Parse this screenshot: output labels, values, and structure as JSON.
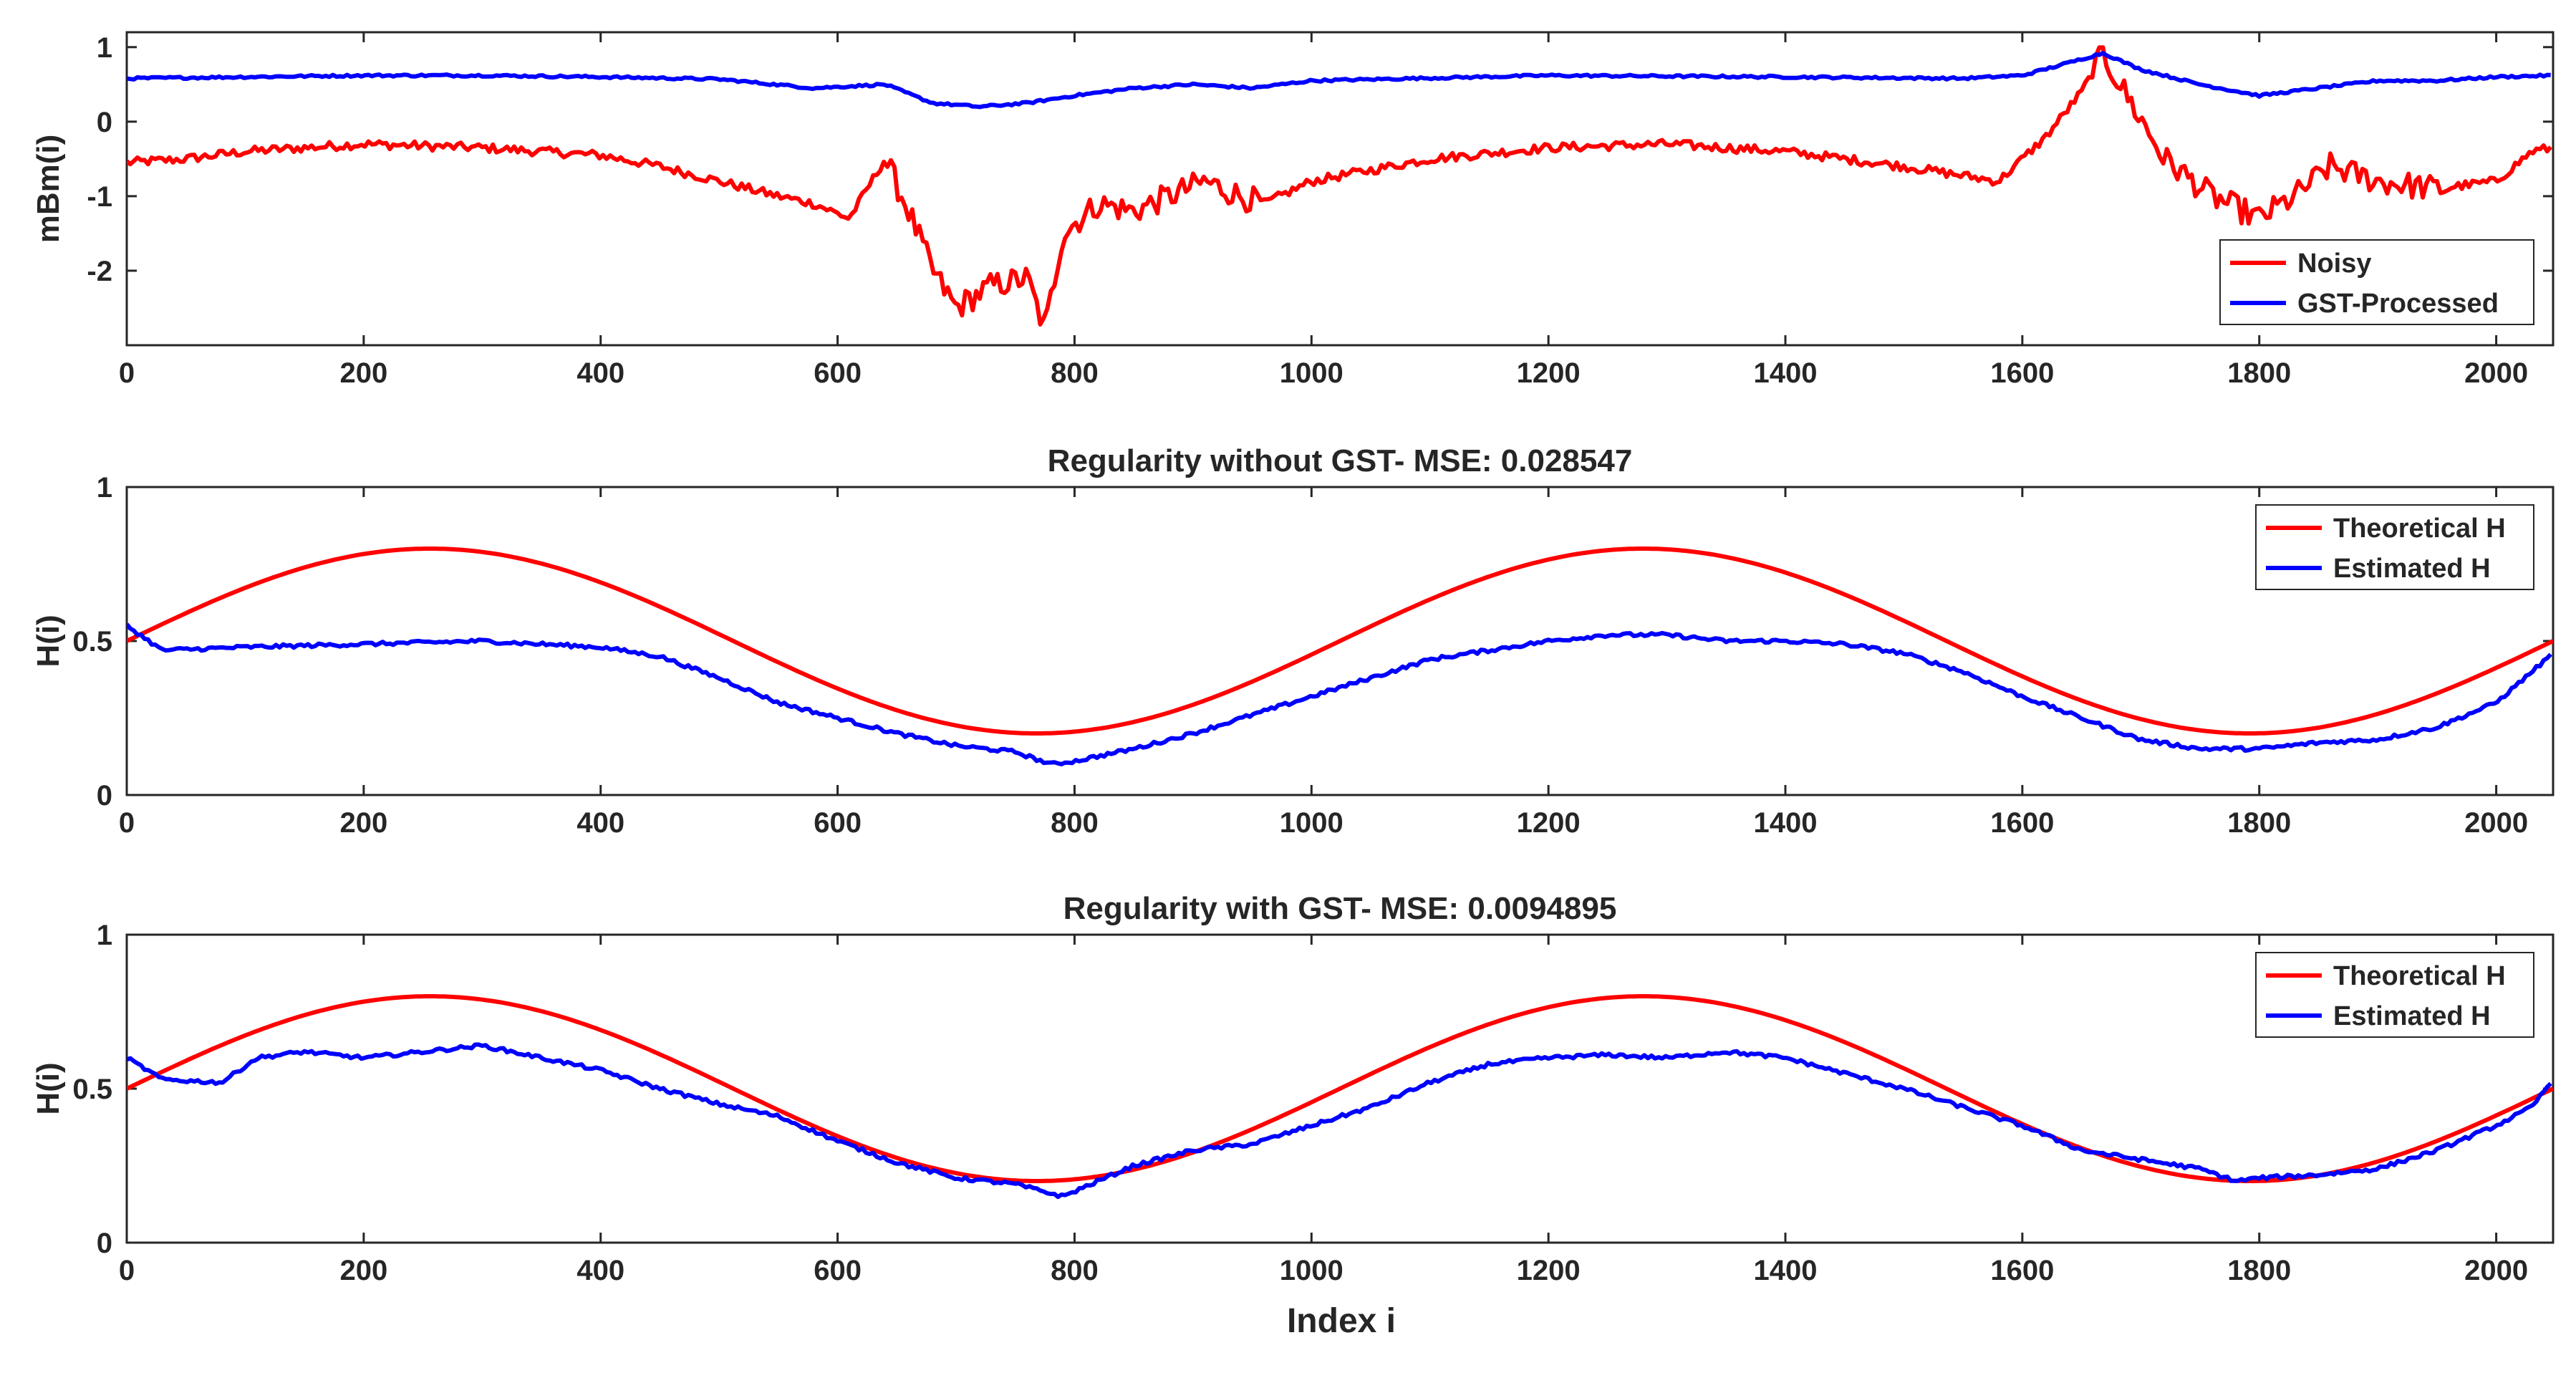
{
  "figure": {
    "xlabel": "Index i"
  },
  "chart_data": [
    {
      "type": "line",
      "title": "",
      "xlabel": "",
      "ylabel": "mBm(i)",
      "xlim": [
        0,
        2048
      ],
      "ylim": [
        -3,
        1.2
      ],
      "xticks": [
        "0",
        "200",
        "400",
        "600",
        "800",
        "1000",
        "1200",
        "1400",
        "1600",
        "1800",
        "2000"
      ],
      "yticks": [
        "-2",
        "-1",
        "0",
        "1"
      ],
      "ytick_values": [
        -2,
        -1,
        0,
        1
      ],
      "legend_position": "bottom-right",
      "series": [
        {
          "name": "Noisy",
          "color": "#ff0000",
          "x": [
            0,
            50,
            100,
            200,
            300,
            400,
            450,
            500,
            550,
            580,
            610,
            640,
            660,
            680,
            700,
            730,
            760,
            775,
            790,
            820,
            850,
            880,
            910,
            940,
            960,
            1000,
            1100,
            1200,
            1300,
            1400,
            1500,
            1580,
            1620,
            1650,
            1668,
            1690,
            1720,
            1760,
            1800,
            1830,
            1860,
            1900,
            1950,
            2000,
            2030,
            2048
          ],
          "values": [
            -0.55,
            -0.5,
            -0.4,
            -0.3,
            -0.35,
            -0.45,
            -0.6,
            -0.8,
            -1.0,
            -1.1,
            -1.3,
            -0.5,
            -1.2,
            -2.0,
            -2.5,
            -2.2,
            -2.1,
            -2.8,
            -1.5,
            -1.1,
            -1.2,
            -1.0,
            -0.8,
            -1.0,
            -1.1,
            -0.8,
            -0.5,
            -0.35,
            -0.3,
            -0.4,
            -0.6,
            -0.8,
            -0.2,
            0.4,
            0.9,
            0.3,
            -0.5,
            -1.0,
            -1.3,
            -1.0,
            -0.6,
            -0.8,
            -0.9,
            -0.8,
            -0.4,
            -0.35
          ]
        },
        {
          "name": "GST-Processed",
          "color": "#0000ff",
          "x": [
            0,
            100,
            200,
            300,
            400,
            500,
            580,
            640,
            680,
            720,
            760,
            800,
            850,
            900,
            950,
            1000,
            1200,
            1400,
            1550,
            1600,
            1630,
            1668,
            1700,
            1750,
            1800,
            1850,
            1900,
            1950,
            2000,
            2048
          ],
          "values": [
            0.58,
            0.6,
            0.62,
            0.62,
            0.6,
            0.57,
            0.45,
            0.5,
            0.25,
            0.2,
            0.25,
            0.35,
            0.45,
            0.5,
            0.45,
            0.55,
            0.62,
            0.6,
            0.58,
            0.62,
            0.75,
            0.92,
            0.7,
            0.5,
            0.35,
            0.45,
            0.55,
            0.55,
            0.6,
            0.62
          ]
        }
      ]
    },
    {
      "type": "line",
      "title": "Regularity without GST- MSE: 0.028547",
      "xlabel": "",
      "ylabel": "H(i)",
      "xlim": [
        0,
        2048
      ],
      "ylim": [
        0,
        1
      ],
      "xticks": [
        "0",
        "200",
        "400",
        "600",
        "800",
        "1000",
        "1200",
        "1400",
        "1600",
        "1800",
        "2000"
      ],
      "yticks": [
        "0",
        "0.5",
        "1"
      ],
      "ytick_values": [
        0,
        0.5,
        1
      ],
      "legend_position": "top-right",
      "theoretical": {
        "mean": 0.5,
        "amplitude": 0.3,
        "period": 1024
      },
      "series": [
        {
          "name": "Theoretical H",
          "color": "#ff0000",
          "formula": "0.5 + 0.3*sin(2*pi*i/1024)"
        },
        {
          "name": "Estimated H",
          "color": "#0000ff",
          "x": [
            0,
            30,
            100,
            200,
            300,
            400,
            450,
            500,
            550,
            600,
            650,
            700,
            750,
            780,
            800,
            850,
            900,
            950,
            1000,
            1050,
            1100,
            1150,
            1200,
            1250,
            1300,
            1350,
            1400,
            1450,
            1500,
            1550,
            1600,
            1650,
            1700,
            1750,
            1800,
            1850,
            1900,
            1950,
            2000,
            2048
          ],
          "values": [
            0.55,
            0.47,
            0.48,
            0.49,
            0.5,
            0.48,
            0.45,
            0.38,
            0.3,
            0.25,
            0.2,
            0.16,
            0.14,
            0.1,
            0.11,
            0.15,
            0.2,
            0.26,
            0.32,
            0.38,
            0.44,
            0.47,
            0.5,
            0.52,
            0.52,
            0.5,
            0.5,
            0.49,
            0.46,
            0.4,
            0.32,
            0.25,
            0.18,
            0.15,
            0.15,
            0.17,
            0.18,
            0.22,
            0.3,
            0.46
          ]
        }
      ]
    },
    {
      "type": "line",
      "title": "Regularity with GST- MSE: 0.0094895",
      "xlabel": "Index i",
      "ylabel": "H(i)",
      "xlim": [
        0,
        2048
      ],
      "ylim": [
        0,
        1
      ],
      "xticks": [
        "0",
        "200",
        "400",
        "600",
        "800",
        "1000",
        "1200",
        "1400",
        "1600",
        "1800",
        "2000"
      ],
      "yticks": [
        "0",
        "0.5",
        "1"
      ],
      "ytick_values": [
        0,
        0.5,
        1
      ],
      "legend_position": "top-right",
      "theoretical": {
        "mean": 0.5,
        "amplitude": 0.3,
        "period": 1024
      },
      "series": [
        {
          "name": "Theoretical H",
          "color": "#ff0000",
          "formula": "0.5 + 0.3*sin(2*pi*i/1024)"
        },
        {
          "name": "Estimated H",
          "color": "#0000ff",
          "x": [
            0,
            30,
            80,
            110,
            150,
            200,
            250,
            300,
            350,
            400,
            450,
            500,
            550,
            600,
            650,
            700,
            750,
            790,
            820,
            850,
            900,
            950,
            1000,
            1050,
            1100,
            1150,
            1200,
            1250,
            1300,
            1350,
            1400,
            1450,
            1500,
            1550,
            1600,
            1650,
            1700,
            1750,
            1780,
            1800,
            1850,
            1900,
            1950,
            2000,
            2030,
            2048
          ],
          "values": [
            0.6,
            0.53,
            0.52,
            0.6,
            0.62,
            0.6,
            0.62,
            0.64,
            0.6,
            0.56,
            0.5,
            0.45,
            0.41,
            0.33,
            0.26,
            0.21,
            0.19,
            0.15,
            0.2,
            0.25,
            0.3,
            0.32,
            0.38,
            0.44,
            0.52,
            0.58,
            0.6,
            0.61,
            0.6,
            0.62,
            0.6,
            0.55,
            0.5,
            0.44,
            0.38,
            0.3,
            0.27,
            0.24,
            0.2,
            0.21,
            0.22,
            0.24,
            0.3,
            0.38,
            0.44,
            0.53
          ]
        }
      ]
    }
  ]
}
